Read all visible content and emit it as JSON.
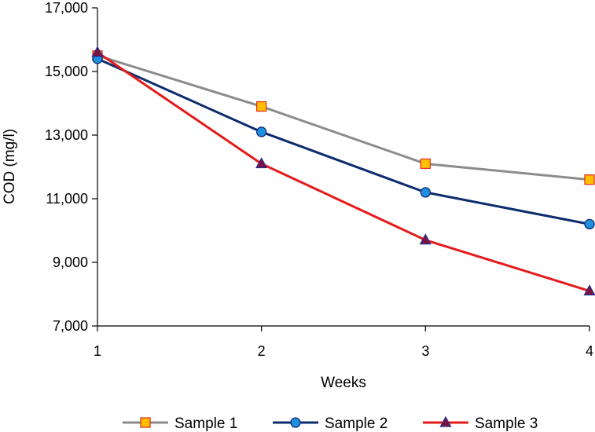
{
  "chart_data": {
    "type": "line",
    "title": "",
    "xlabel": "Weeks",
    "ylabel": "COD (mg/l)",
    "x": [
      1,
      2,
      3,
      4
    ],
    "x_tick_labels": [
      "1",
      "2",
      "3",
      "4"
    ],
    "xlim": [
      1,
      4
    ],
    "ylim": [
      7000,
      17000
    ],
    "y_ticks": [
      7000,
      9000,
      11000,
      13000,
      15000,
      17000
    ],
    "y_tick_labels": [
      "7,000",
      "9,000",
      "11,000",
      "13,000",
      "15,000",
      "17,000"
    ],
    "grid": false,
    "legend_position": "bottom",
    "series": [
      {
        "name": "Sample 1",
        "values": [
          15500,
          13900,
          12100,
          11600
        ],
        "line_color": "#8c8c8c",
        "marker": "square",
        "marker_fill": "#ffc000",
        "marker_stroke": "#e8331c"
      },
      {
        "name": "Sample 2",
        "values": [
          15400,
          13100,
          11200,
          10200
        ],
        "line_color": "#0d2c6e",
        "marker": "circle",
        "marker_fill": "#1f8fe0",
        "marker_stroke": "#0d2c6e"
      },
      {
        "name": "Sample 3",
        "values": [
          15600,
          12100,
          9700,
          8100
        ],
        "line_color": "#e51a1a",
        "marker": "triangle",
        "marker_fill": "#7b1240",
        "marker_stroke": "#2b2f8a"
      }
    ]
  }
}
